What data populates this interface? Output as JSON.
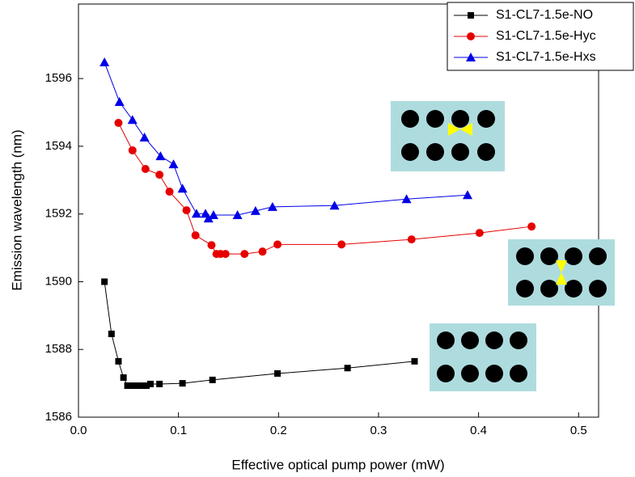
{
  "chart_data": {
    "type": "line",
    "x_label": "Effective optical pump power (mW)",
    "y_label": "Emission wavelength (nm)",
    "xlim": [
      0,
      0.52
    ],
    "ylim": [
      1586,
      1598.2
    ],
    "xticks": [
      {
        "value": 0,
        "label": "0.0"
      },
      0.1,
      0.2,
      0.3,
      0.4,
      0.5
    ],
    "yticks": [
      1586,
      1588,
      1590,
      1592,
      1594,
      1596
    ],
    "legend": "top-right",
    "series": [
      {
        "name": "S1-CL7-1.5e-NO",
        "color": "#000000",
        "marker": "square",
        "x": [
          0.026,
          0.033,
          0.04,
          0.045,
          0.049,
          0.053,
          0.059,
          0.064,
          0.068,
          0.072,
          0.081,
          0.104,
          0.134,
          0.199,
          0.269,
          0.336
        ],
        "values": [
          1590.0,
          1588.46,
          1587.65,
          1587.17,
          1586.93,
          1586.93,
          1586.93,
          1586.93,
          1586.93,
          1586.98,
          1586.98,
          1587.0,
          1587.1,
          1587.29,
          1587.45,
          1587.65
        ]
      },
      {
        "name": "S1-CL7-1.5e-Hyc",
        "color": "#e60000",
        "marker": "circle",
        "x": [
          0.04,
          0.054,
          0.067,
          0.081,
          0.091,
          0.108,
          0.117,
          0.133,
          0.138,
          0.142,
          0.147,
          0.166,
          0.184,
          0.199,
          0.263,
          0.333,
          0.401,
          0.453
        ],
        "values": [
          1594.69,
          1593.88,
          1593.33,
          1593.16,
          1592.66,
          1592.11,
          1591.37,
          1591.08,
          1590.82,
          1590.82,
          1590.82,
          1590.82,
          1590.89,
          1591.1,
          1591.1,
          1591.25,
          1591.44,
          1591.63
        ]
      },
      {
        "name": "S1-CL7-1.5e-Hxs",
        "color": "#0000e6",
        "marker": "triangle",
        "x": [
          0.026,
          0.041,
          0.054,
          0.066,
          0.082,
          0.095,
          0.104,
          0.118,
          0.127,
          0.13,
          0.135,
          0.159,
          0.177,
          0.194,
          0.256,
          0.328,
          0.389
        ],
        "values": [
          1596.48,
          1595.31,
          1594.78,
          1594.26,
          1593.71,
          1593.47,
          1592.75,
          1592.01,
          1592.01,
          1591.87,
          1591.97,
          1591.97,
          1592.09,
          1592.21,
          1592.25,
          1592.44,
          1592.56
        ]
      }
    ]
  }
}
